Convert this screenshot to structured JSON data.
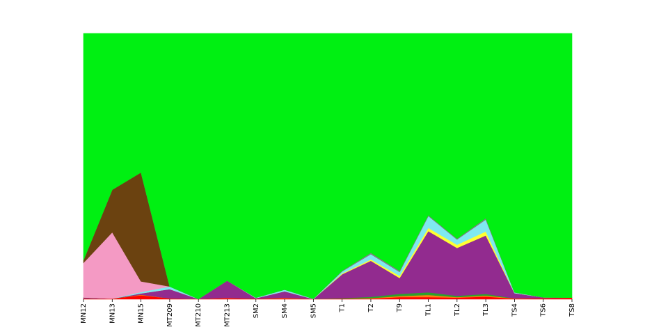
{
  "chart_data": {
    "type": "area",
    "stacked": true,
    "normalized": true,
    "ylim": [
      0,
      1
    ],
    "grid": false,
    "legend": "none",
    "categories": [
      "MN12",
      "MN13",
      "MN15",
      "MT209",
      "MT210",
      "MT213",
      "SM2",
      "SM4",
      "SM5",
      "T1",
      "T2",
      "T9",
      "TL1",
      "TL2",
      "TL3",
      "TS4",
      "TS6",
      "TS8"
    ],
    "series": [
      {
        "color": "#ff0000",
        "values": [
          0.003,
          0.002,
          0.015,
          0.003,
          0.001,
          0.004,
          0.002,
          0.003,
          0.001,
          0.002,
          0.002,
          0.008,
          0.008,
          0.006,
          0.01,
          0.002,
          0.004,
          0.006
        ]
      },
      {
        "color": "#ff7f0e",
        "values": [
          0.0,
          0.0,
          0.002,
          0.0,
          0.0,
          0.001,
          0.0,
          0.002,
          0.0,
          0.0,
          0.002,
          0.004,
          0.008,
          0.002,
          0.004,
          0.001,
          0.0,
          0.0
        ]
      },
      {
        "color": "#2ca02c",
        "values": [
          0.0,
          0.0,
          0.0,
          0.0,
          0.0,
          0.0,
          0.0,
          0.0,
          0.0,
          0.002,
          0.005,
          0.008,
          0.01,
          0.005,
          0.006,
          0.0,
          0.0,
          0.0
        ]
      },
      {
        "color": "#922b8f",
        "values": [
          0.004,
          0.0,
          0.005,
          0.035,
          0.0,
          0.065,
          0.002,
          0.025,
          0.0,
          0.09,
          0.135,
          0.06,
          0.23,
          0.18,
          0.22,
          0.02,
          0.003,
          0.0
        ]
      },
      {
        "color": "#ffff33",
        "values": [
          0.0,
          0.0,
          0.0,
          0.0,
          0.0,
          0.0,
          0.0,
          0.0,
          0.0,
          0.003,
          0.005,
          0.008,
          0.012,
          0.012,
          0.015,
          0.0,
          0.0,
          0.0
        ]
      },
      {
        "color": "#7ee9f0",
        "values": [
          0.0,
          0.0,
          0.005,
          0.01,
          0.0,
          0.0,
          0.002,
          0.006,
          0.001,
          0.008,
          0.02,
          0.015,
          0.045,
          0.02,
          0.045,
          0.003,
          0.0,
          0.0
        ]
      },
      {
        "color": "#f49ac4",
        "values": [
          0.13,
          0.25,
          0.04,
          0.0,
          0.0,
          0.0,
          0.0,
          0.0,
          0.0,
          0.0,
          0.0,
          0.0,
          0.0,
          0.0,
          0.0,
          0.0,
          0.0,
          0.0
        ]
      },
      {
        "color": "#6b4210",
        "values": [
          0.01,
          0.16,
          0.41,
          0.0,
          0.0,
          0.0,
          0.0,
          0.0,
          0.0,
          0.0,
          0.0,
          0.0,
          0.0,
          0.0,
          0.0,
          0.0,
          0.0,
          0.0
        ]
      },
      {
        "color": "#808080",
        "values": [
          0.0,
          0.0,
          0.0,
          0.0,
          0.0,
          0.0,
          0.0,
          0.0,
          0.0,
          0.002,
          0.005,
          0.004,
          0.003,
          0.003,
          0.005,
          0.0,
          0.0,
          0.0
        ]
      },
      {
        "color": "#00f012",
        "values": [
          0.853,
          0.588,
          0.523,
          0.952,
          0.999,
          0.93,
          0.994,
          0.964,
          0.998,
          0.893,
          0.821,
          0.893,
          0.683,
          0.772,
          0.695,
          0.974,
          0.993,
          0.994
        ]
      }
    ]
  }
}
